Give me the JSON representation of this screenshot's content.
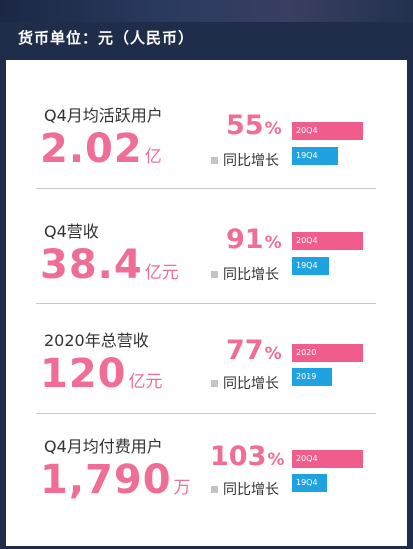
{
  "header": {
    "title": "货币单位：元（人民币）"
  },
  "chart_data": [
    {
      "type": "bar",
      "metric": "Q4月均活跃用户",
      "value": "2.02",
      "unit": "亿",
      "growth": "55",
      "growth_unit": "%",
      "growth_label": "同比增长",
      "categories": [
        "20Q4",
        "19Q4"
      ],
      "values": [
        2.02,
        1.3
      ]
    },
    {
      "type": "bar",
      "metric": "Q4营收",
      "value": "38.4",
      "unit": "亿元",
      "growth": "91",
      "growth_unit": "%",
      "growth_label": "同比增长",
      "categories": [
        "20Q4",
        "19Q4"
      ],
      "values": [
        38.4,
        20.1
      ]
    },
    {
      "type": "bar",
      "metric": "2020年总营收",
      "value": "120",
      "unit": "亿元",
      "growth": "77",
      "growth_unit": "%",
      "growth_label": "同比增长",
      "categories": [
        "2020",
        "2019"
      ],
      "values": [
        120,
        67.8
      ]
    },
    {
      "type": "bar",
      "metric": "Q4月均付费用户",
      "value": "1,790",
      "unit": "万",
      "growth": "103",
      "growth_unit": "%",
      "growth_label": "同比增长",
      "categories": [
        "20Q4",
        "19Q4"
      ],
      "values": [
        1790,
        880
      ]
    }
  ],
  "colors": {
    "current_bar": "#f05d8c",
    "previous_bar": "#1fa3e0",
    "value_text": "#f06e95"
  }
}
